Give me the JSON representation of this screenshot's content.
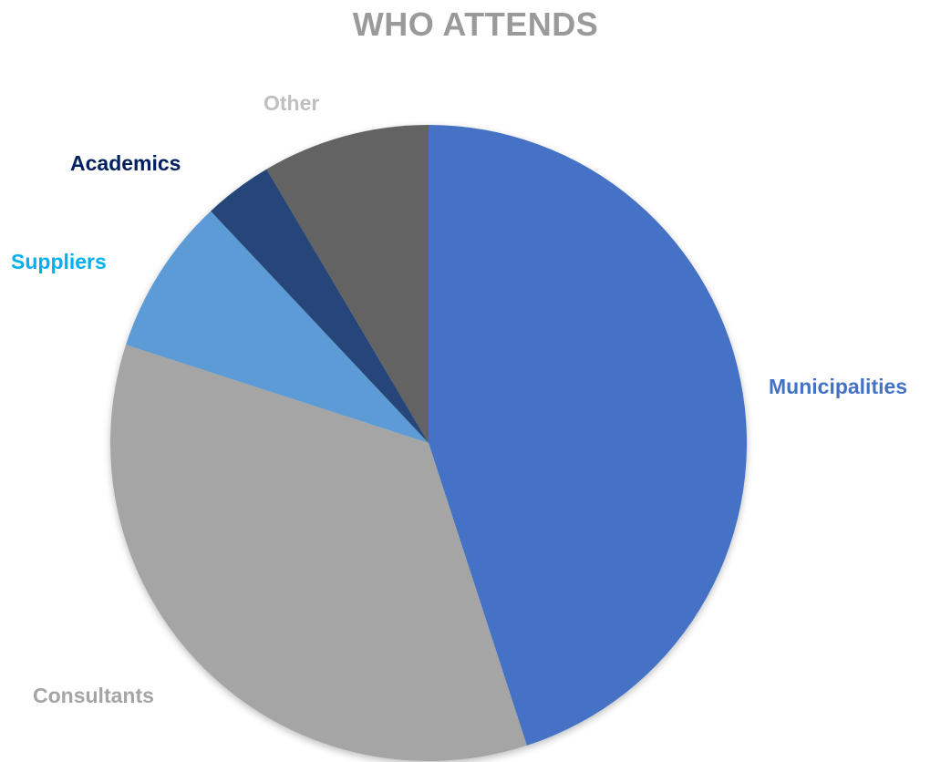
{
  "chart_data": {
    "type": "pie",
    "title": "WHO ATTENDS",
    "categories": [
      "Municipalities",
      "Consultants",
      "Suppliers",
      "Academics",
      "Other"
    ],
    "values": [
      45,
      35,
      8,
      3.5,
      8.5
    ],
    "colors": [
      "#4472C4",
      "#A5A5A5",
      "#5B9BD5",
      "#264478",
      "#636363"
    ],
    "label_colors": [
      "#4472C4",
      "#A5A5A5",
      "#00B0F0",
      "#002060",
      "#BFBFBF"
    ],
    "legend": "none",
    "start_angle": "12 o'clock",
    "direction": "clockwise"
  }
}
